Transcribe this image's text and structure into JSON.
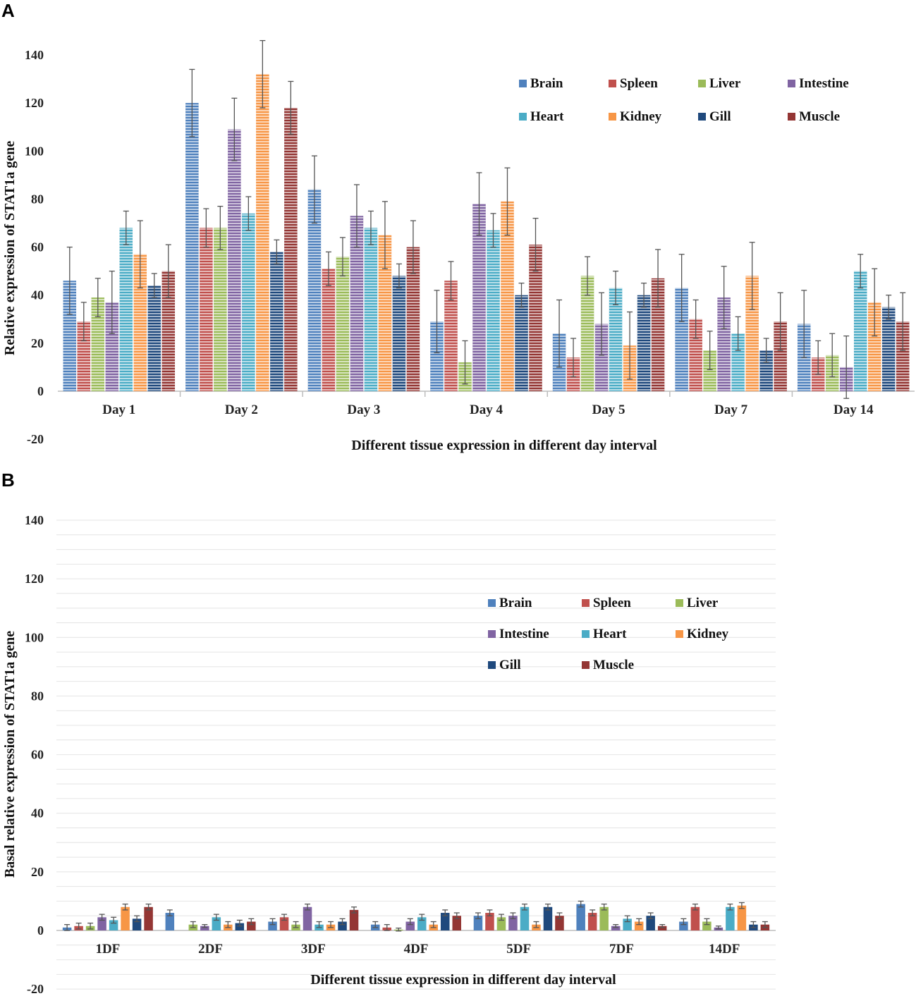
{
  "colors": {
    "Brain": "#4f81bd",
    "Spleen": "#c0504d",
    "Liver": "#9bbb59",
    "Intestine": "#8064a2",
    "Heart": "#4bacc6",
    "Kidney": "#f79646",
    "Gill": "#1f497d",
    "Muscle": "#943634"
  },
  "chart_data": [
    {
      "panel": "A",
      "type": "bar",
      "xlabel": "Different tissue expression in different day interval",
      "ylabel": "Relative expression of STAT1a gene",
      "ylim": [
        -20,
        140
      ],
      "yticks": [
        -20,
        0,
        20,
        40,
        60,
        80,
        100,
        120,
        140
      ],
      "grid": false,
      "legend": "top-right",
      "categories": [
        "Day 1",
        "Day 2",
        "Day 3",
        "Day 4",
        "Day 5",
        "Day 7",
        "Day 14"
      ],
      "series": [
        {
          "name": "Brain",
          "values": [
            46,
            120,
            84,
            29,
            24,
            43,
            28
          ],
          "errors": [
            14,
            14,
            14,
            13,
            14,
            14,
            14
          ]
        },
        {
          "name": "Spleen",
          "values": [
            29,
            68,
            51,
            46,
            14,
            30,
            14
          ],
          "errors": [
            8,
            8,
            7,
            8,
            8,
            8,
            7
          ]
        },
        {
          "name": "Liver",
          "values": [
            39,
            68,
            56,
            12,
            48,
            17,
            15
          ],
          "errors": [
            8,
            9,
            8,
            9,
            8,
            8,
            9
          ]
        },
        {
          "name": "Intestine",
          "values": [
            37,
            109,
            73,
            78,
            28,
            39,
            10
          ],
          "errors": [
            13,
            13,
            13,
            13,
            13,
            13,
            13
          ]
        },
        {
          "name": "Heart",
          "values": [
            68,
            74,
            68,
            67,
            43,
            24,
            50
          ],
          "errors": [
            7,
            7,
            7,
            7,
            7,
            7,
            7
          ]
        },
        {
          "name": "Kidney",
          "values": [
            57,
            132,
            65,
            79,
            19,
            48,
            37
          ],
          "errors": [
            14,
            14,
            14,
            14,
            14,
            14,
            14
          ]
        },
        {
          "name": "Gill",
          "values": [
            44,
            58,
            48,
            40,
            40,
            17,
            35
          ],
          "errors": [
            5,
            5,
            5,
            5,
            5,
            5,
            5
          ]
        },
        {
          "name": "Muscle",
          "values": [
            50,
            118,
            60,
            61,
            47,
            29,
            29
          ],
          "errors": [
            11,
            11,
            11,
            11,
            12,
            12,
            12
          ]
        }
      ]
    },
    {
      "panel": "B",
      "type": "bar",
      "xlabel": "Different tissue expression in different day interval",
      "ylabel": "Basal relative expression of STAT1a gene",
      "ylim": [
        -20,
        140
      ],
      "yticks": [
        -20,
        0,
        20,
        40,
        60,
        80,
        100,
        120,
        140
      ],
      "grid": true,
      "legend": "top-right",
      "categories": [
        "1DF",
        "2DF",
        "3DF",
        "4DF",
        "5DF",
        "7DF",
        "14DF"
      ],
      "series": [
        {
          "name": "Brain",
          "values": [
            1,
            6,
            3,
            2,
            5,
            9,
            3
          ],
          "errors": [
            1,
            1,
            1,
            1,
            1,
            1,
            1
          ]
        },
        {
          "name": "Spleen",
          "values": [
            1.5,
            0,
            4.5,
            1,
            6,
            6,
            8
          ],
          "errors": [
            1,
            0,
            1,
            1,
            1,
            1,
            1
          ]
        },
        {
          "name": "Liver",
          "values": [
            1.5,
            2,
            2,
            0.3,
            4.5,
            8,
            3
          ],
          "errors": [
            1,
            1,
            1,
            0.5,
            1,
            1,
            1
          ]
        },
        {
          "name": "Intestine",
          "values": [
            4.5,
            1.5,
            8,
            3,
            5,
            1.5,
            1
          ],
          "errors": [
            1,
            0.5,
            1,
            1,
            1,
            0.5,
            0.5
          ]
        },
        {
          "name": "Heart",
          "values": [
            3.5,
            4.5,
            2,
            4.5,
            8,
            4,
            8
          ],
          "errors": [
            1,
            1,
            1,
            1,
            1,
            1,
            1
          ]
        },
        {
          "name": "Kidney",
          "values": [
            8,
            2,
            2,
            2,
            2,
            3,
            8.5
          ],
          "errors": [
            1,
            1,
            1,
            1,
            1,
            1,
            1
          ]
        },
        {
          "name": "Gill",
          "values": [
            4,
            2.5,
            3,
            6,
            8,
            5,
            2
          ],
          "errors": [
            1,
            1,
            1,
            1,
            1,
            1,
            1
          ]
        },
        {
          "name": "Muscle",
          "values": [
            8,
            3,
            7,
            5,
            5,
            1.5,
            2
          ],
          "errors": [
            1,
            1,
            1,
            1,
            1,
            0.5,
            1
          ]
        }
      ]
    }
  ],
  "panels": {
    "a": {
      "letter": "A"
    },
    "b": {
      "letter": "B"
    }
  }
}
